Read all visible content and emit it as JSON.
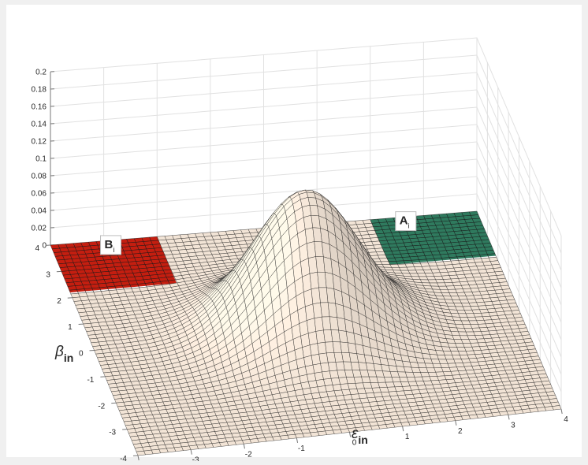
{
  "chart_data": {
    "type": "surface",
    "title": "",
    "xlabel": {
      "symbol": "ε",
      "subscript": "in"
    },
    "ylabel": {
      "symbol": "β",
      "subscript": "in"
    },
    "zlabel": "",
    "xlim": [
      -4,
      4
    ],
    "ylim": [
      -4,
      4
    ],
    "zlim": [
      0,
      0.2
    ],
    "x_ticks": [
      "-4",
      "-3",
      "-2",
      "-1",
      "0",
      "1",
      "2",
      "3",
      "4"
    ],
    "y_ticks": [
      "-4",
      "-3",
      "-2",
      "-1",
      "0",
      "1",
      "2",
      "3",
      "4"
    ],
    "z_ticks": [
      "0",
      "0.02",
      "0.04",
      "0.06",
      "0.08",
      "0.1",
      "0.12",
      "0.14",
      "0.16",
      "0.18",
      "0.2"
    ],
    "grid": true,
    "surface": {
      "function": "bivariate standard normal density",
      "mean": [
        0,
        0
      ],
      "std": [
        1,
        1
      ],
      "peak_value": 0.159,
      "face_color": "#f2e4df",
      "edge_color": "#000000"
    },
    "regions": [
      {
        "label": "A",
        "subscript": "i",
        "color": "#2f7a5e",
        "x_range": [
          2,
          4
        ],
        "y_range": [
          2.2,
          4
        ]
      },
      {
        "label": "B",
        "subscript": "i",
        "color": "#c41e10",
        "x_range": [
          -4,
          -2
        ],
        "y_range": [
          2.2,
          4
        ]
      }
    ]
  }
}
